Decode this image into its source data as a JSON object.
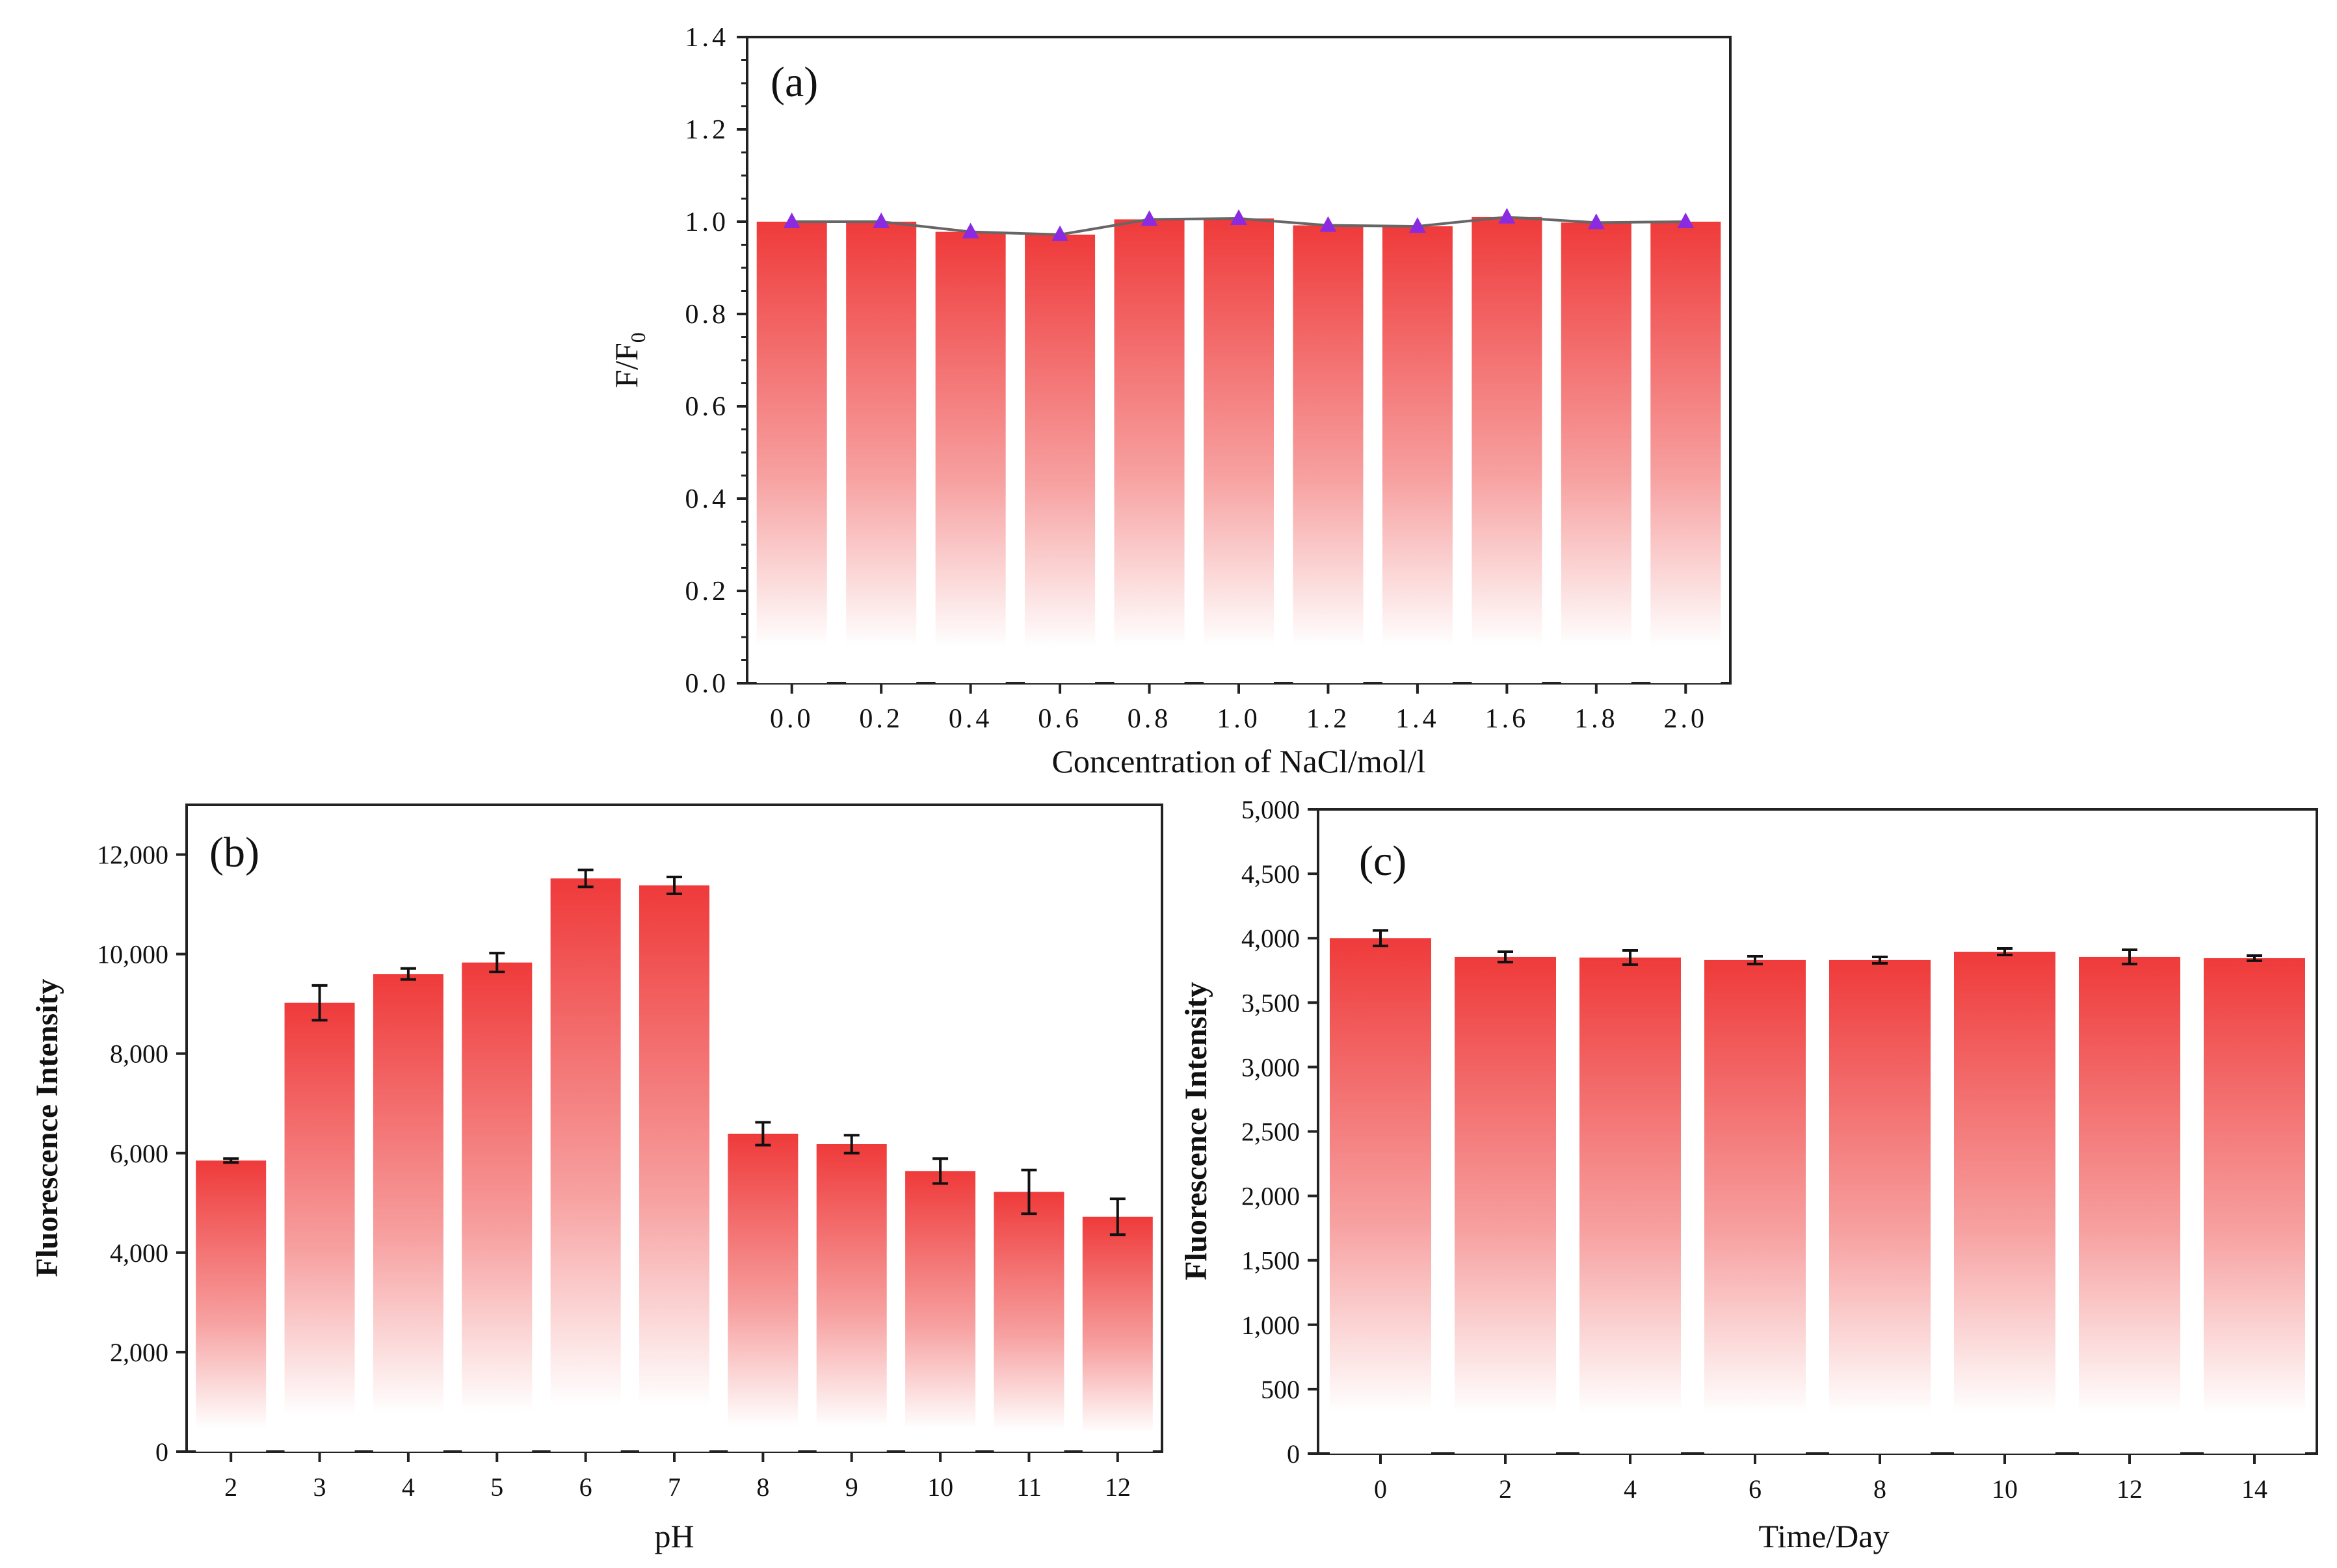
{
  "colors": {
    "bar_top": "#ef3a3a",
    "bar_bottom": "#ffffff",
    "marker": "#8a2be2",
    "line": "#666666",
    "axis": "#222222"
  },
  "chart_data": [
    {
      "id": "a",
      "type": "bar",
      "panel_label": "(a)",
      "title": "",
      "xlabel": "Concentration of NaCl/mol/l",
      "ylabel": "F/F",
      "ylabel_sub": "0",
      "categories": [
        "0.0",
        "0.2",
        "0.4",
        "0.6",
        "0.8",
        "1.0",
        "1.2",
        "1.4",
        "1.6",
        "1.8",
        "2.0"
      ],
      "values": [
        1.0,
        1.0,
        0.978,
        0.972,
        1.005,
        1.007,
        0.992,
        0.99,
        1.01,
        0.998,
        1.0
      ],
      "overlay": {
        "type": "line",
        "marker": "triangle",
        "values": [
          1.0,
          1.0,
          0.978,
          0.972,
          1.005,
          1.007,
          0.992,
          0.99,
          1.01,
          0.998,
          1.0
        ]
      },
      "ylim": [
        0,
        1.4
      ],
      "yticks": [
        "0.0",
        "0.2",
        "0.4",
        "0.6",
        "0.8",
        "1.0",
        "1.2",
        "1.4"
      ],
      "ytick_values": [
        0,
        0.2,
        0.4,
        0.6,
        0.8,
        1.0,
        1.2,
        1.4
      ],
      "grid": false,
      "legend": "none"
    },
    {
      "id": "b",
      "type": "bar",
      "panel_label": "(b)",
      "title": "",
      "xlabel": "pH",
      "ylabel": "Fluorescence Intensity",
      "categories": [
        "2",
        "3",
        "4",
        "5",
        "6",
        "7",
        "8",
        "9",
        "10",
        "11",
        "12"
      ],
      "values": [
        5850,
        9020,
        9600,
        9830,
        11520,
        11380,
        6390,
        6180,
        5640,
        5220,
        4720
      ],
      "errors": [
        40,
        350,
        110,
        190,
        170,
        170,
        230,
        180,
        250,
        440,
        360
      ],
      "ylim": [
        0,
        13000
      ],
      "yticks": [
        "0",
        "2,000",
        "4,000",
        "6,000",
        "8,000",
        "10,000",
        "12,000"
      ],
      "ytick_values": [
        0,
        2000,
        4000,
        6000,
        8000,
        10000,
        12000
      ],
      "grid": false,
      "legend": "none"
    },
    {
      "id": "c",
      "type": "bar",
      "panel_label": "(c)",
      "title": "",
      "xlabel": "Time/Day",
      "ylabel": "Fluorescence Intensity",
      "categories": [
        "0",
        "2",
        "4",
        "6",
        "8",
        "10",
        "12",
        "14"
      ],
      "values": [
        4000,
        3855,
        3850,
        3830,
        3830,
        3895,
        3855,
        3845
      ],
      "errors": [
        60,
        40,
        55,
        30,
        25,
        25,
        55,
        20
      ],
      "ylim": [
        0,
        5000
      ],
      "yticks": [
        "0",
        "500",
        "1,000",
        "1,500",
        "2,000",
        "2,500",
        "3,000",
        "3,500",
        "4,000",
        "4,500",
        "5,000"
      ],
      "ytick_values": [
        0,
        500,
        1000,
        1500,
        2000,
        2500,
        3000,
        3500,
        4000,
        4500,
        5000
      ],
      "grid": false,
      "legend": "none"
    }
  ]
}
